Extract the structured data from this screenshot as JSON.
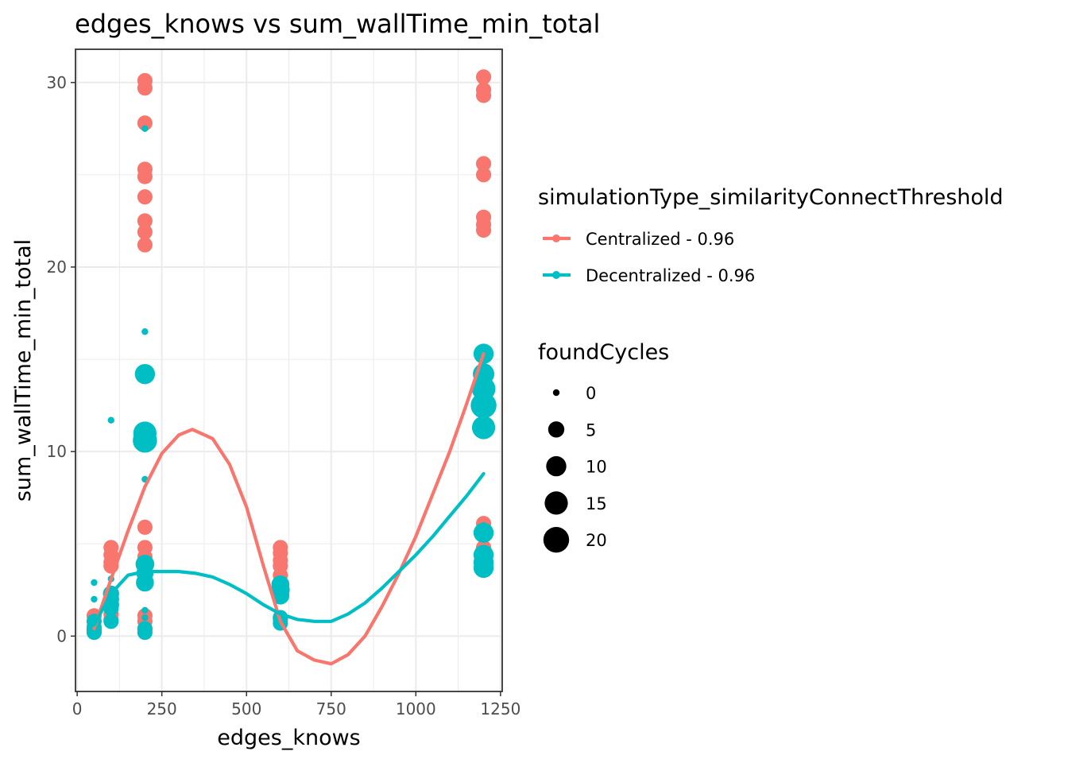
{
  "chart_data": {
    "type": "scatter",
    "title": "edges_knows  vs  sum_wallTime_min_total",
    "xlabel": "edges_knows",
    "ylabel": "sum_wallTime_min_total",
    "xlim": [
      -5,
      1255
    ],
    "ylim": [
      -3,
      31.8
    ],
    "xticks": [
      0,
      250,
      500,
      750,
      1000,
      1250
    ],
    "xtick_labels": [
      "0",
      "250",
      "500",
      "750",
      "1000",
      "1250"
    ],
    "yticks": [
      0,
      10,
      20,
      30
    ],
    "ytick_labels": [
      "0",
      "10",
      "20",
      "30"
    ],
    "grid": true,
    "legend_position": "right",
    "color_legend": {
      "title": "simulationType_similarityConnectThreshold",
      "entries": [
        {
          "label": "Centralized - 0.96",
          "color": "#F8766D"
        },
        {
          "label": "Decentralized - 0.96",
          "color": "#00BFC4"
        }
      ]
    },
    "size_legend": {
      "title": "foundCycles",
      "entries": [
        {
          "label": "0",
          "value": 0
        },
        {
          "label": "5",
          "value": 5
        },
        {
          "label": "10",
          "value": 10
        },
        {
          "label": "15",
          "value": 15
        },
        {
          "label": "20",
          "value": 20
        }
      ]
    },
    "series": [
      {
        "name": "Centralized - 0.96",
        "color": "#F8766D",
        "points": [
          [
            50,
            1.1,
            4
          ],
          [
            50,
            0.5,
            4
          ],
          [
            50,
            0.3,
            4
          ],
          [
            100,
            4.8,
            4
          ],
          [
            100,
            4.4,
            4
          ],
          [
            100,
            4.0,
            4
          ],
          [
            100,
            3.8,
            4
          ],
          [
            100,
            1.8,
            4
          ],
          [
            100,
            1.2,
            4
          ],
          [
            100,
            0.9,
            4
          ],
          [
            200,
            30.1,
            4
          ],
          [
            200,
            29.7,
            4
          ],
          [
            200,
            27.8,
            4
          ],
          [
            200,
            25.3,
            4
          ],
          [
            200,
            24.9,
            4
          ],
          [
            200,
            23.8,
            4
          ],
          [
            200,
            22.5,
            4
          ],
          [
            200,
            21.9,
            4
          ],
          [
            200,
            21.2,
            4
          ],
          [
            200,
            5.9,
            4
          ],
          [
            200,
            4.8,
            4
          ],
          [
            200,
            4.3,
            4
          ],
          [
            200,
            3.5,
            4
          ],
          [
            200,
            1.1,
            4
          ],
          [
            200,
            0.8,
            4
          ],
          [
            200,
            0.4,
            4
          ],
          [
            600,
            4.8,
            4
          ],
          [
            600,
            4.5,
            4
          ],
          [
            600,
            4.1,
            4
          ],
          [
            600,
            3.8,
            4
          ],
          [
            600,
            3.3,
            4
          ],
          [
            600,
            2.7,
            4
          ],
          [
            600,
            1.0,
            4
          ],
          [
            600,
            0.9,
            4
          ],
          [
            1200,
            30.3,
            4
          ],
          [
            1200,
            29.6,
            4
          ],
          [
            1200,
            29.3,
            4
          ],
          [
            1200,
            25.6,
            4
          ],
          [
            1200,
            25.0,
            4
          ],
          [
            1200,
            22.7,
            4
          ],
          [
            1200,
            22.3,
            4
          ],
          [
            1200,
            22.0,
            4
          ],
          [
            1200,
            6.1,
            4
          ],
          [
            1200,
            5.8,
            4
          ],
          [
            1200,
            4.8,
            4
          ],
          [
            1200,
            4.4,
            4
          ]
        ],
        "smooth": [
          [
            50,
            0.4
          ],
          [
            100,
            3.1
          ],
          [
            150,
            5.7
          ],
          [
            200,
            8.1
          ],
          [
            250,
            9.9
          ],
          [
            300,
            10.9
          ],
          [
            340,
            11.2
          ],
          [
            400,
            10.7
          ],
          [
            450,
            9.3
          ],
          [
            500,
            7.0
          ],
          [
            550,
            3.8
          ],
          [
            600,
            0.8
          ],
          [
            650,
            -0.8
          ],
          [
            700,
            -1.3
          ],
          [
            750,
            -1.5
          ],
          [
            800,
            -1.0
          ],
          [
            850,
            0.0
          ],
          [
            900,
            1.6
          ],
          [
            950,
            3.4
          ],
          [
            1000,
            5.4
          ],
          [
            1050,
            7.7
          ],
          [
            1100,
            10.0
          ],
          [
            1150,
            12.6
          ],
          [
            1200,
            15.3
          ]
        ]
      },
      {
        "name": "Decentralized - 0.96",
        "color": "#00BFC4",
        "points": [
          [
            50,
            2.9,
            0
          ],
          [
            50,
            2.0,
            0
          ],
          [
            50,
            0.8,
            4
          ],
          [
            50,
            0.4,
            4
          ],
          [
            50,
            0.2,
            4
          ],
          [
            100,
            11.7,
            0
          ],
          [
            100,
            2.3,
            5
          ],
          [
            100,
            2.0,
            5
          ],
          [
            100,
            1.7,
            5
          ],
          [
            100,
            1.5,
            4
          ],
          [
            100,
            0.8,
            4
          ],
          [
            100,
            3.1,
            0
          ],
          [
            200,
            27.5,
            0
          ],
          [
            200,
            16.5,
            0
          ],
          [
            200,
            14.2,
            10
          ],
          [
            200,
            11.0,
            15
          ],
          [
            200,
            10.6,
            17
          ],
          [
            200,
            8.5,
            0
          ],
          [
            200,
            3.9,
            8
          ],
          [
            200,
            3.4,
            6
          ],
          [
            200,
            2.9,
            7
          ],
          [
            200,
            1.4,
            0
          ],
          [
            200,
            1.0,
            0
          ],
          [
            200,
            0.4,
            4
          ],
          [
            200,
            0.2,
            4
          ],
          [
            600,
            2.8,
            7
          ],
          [
            600,
            2.5,
            8
          ],
          [
            600,
            2.2,
            7
          ],
          [
            600,
            1.0,
            4
          ],
          [
            600,
            0.7,
            4
          ],
          [
            1200,
            15.3,
            10
          ],
          [
            1200,
            14.2,
            12
          ],
          [
            1200,
            13.4,
            16
          ],
          [
            1200,
            12.5,
            20
          ],
          [
            1200,
            11.3,
            15
          ],
          [
            1200,
            6.0,
            0
          ],
          [
            1200,
            5.6,
            10
          ],
          [
            1200,
            4.4,
            10
          ],
          [
            1200,
            4.0,
            10
          ],
          [
            1200,
            3.7,
            10
          ]
        ],
        "smooth": [
          [
            50,
            0.6
          ],
          [
            100,
            2.3
          ],
          [
            150,
            3.3
          ],
          [
            200,
            3.5
          ],
          [
            250,
            3.5
          ],
          [
            300,
            3.5
          ],
          [
            350,
            3.4
          ],
          [
            400,
            3.2
          ],
          [
            450,
            2.8
          ],
          [
            500,
            2.3
          ],
          [
            550,
            1.7
          ],
          [
            600,
            1.2
          ],
          [
            650,
            0.9
          ],
          [
            700,
            0.8
          ],
          [
            750,
            0.8
          ],
          [
            800,
            1.2
          ],
          [
            850,
            1.8
          ],
          [
            900,
            2.6
          ],
          [
            950,
            3.5
          ],
          [
            1000,
            4.4
          ],
          [
            1050,
            5.4
          ],
          [
            1100,
            6.5
          ],
          [
            1150,
            7.6
          ],
          [
            1200,
            8.8
          ]
        ]
      }
    ]
  }
}
